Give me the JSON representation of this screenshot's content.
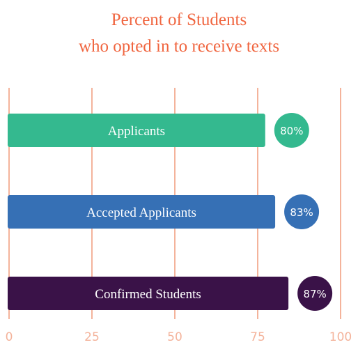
{
  "chart_data": {
    "type": "bar",
    "orientation": "horizontal",
    "title": [
      "Percent of Students",
      "who opted in to receive texts"
    ],
    "xlabel": "",
    "ylabel": "",
    "xlim": [
      0,
      100
    ],
    "x_ticks": [
      0,
      25,
      50,
      75,
      100
    ],
    "grid": true,
    "legend": "none",
    "categories": [
      "Applicants",
      "Accepted Applicants",
      "Confirmed Students"
    ],
    "values": [
      80,
      83,
      87
    ],
    "value_labels": [
      "80%",
      "83%",
      "87%"
    ],
    "colors": [
      "#34b98f",
      "#3670b5",
      "#3a1248"
    ],
    "title_color": "#f0653f",
    "grid_color": "#f4b39b",
    "tick_color": "#f4b39b"
  }
}
